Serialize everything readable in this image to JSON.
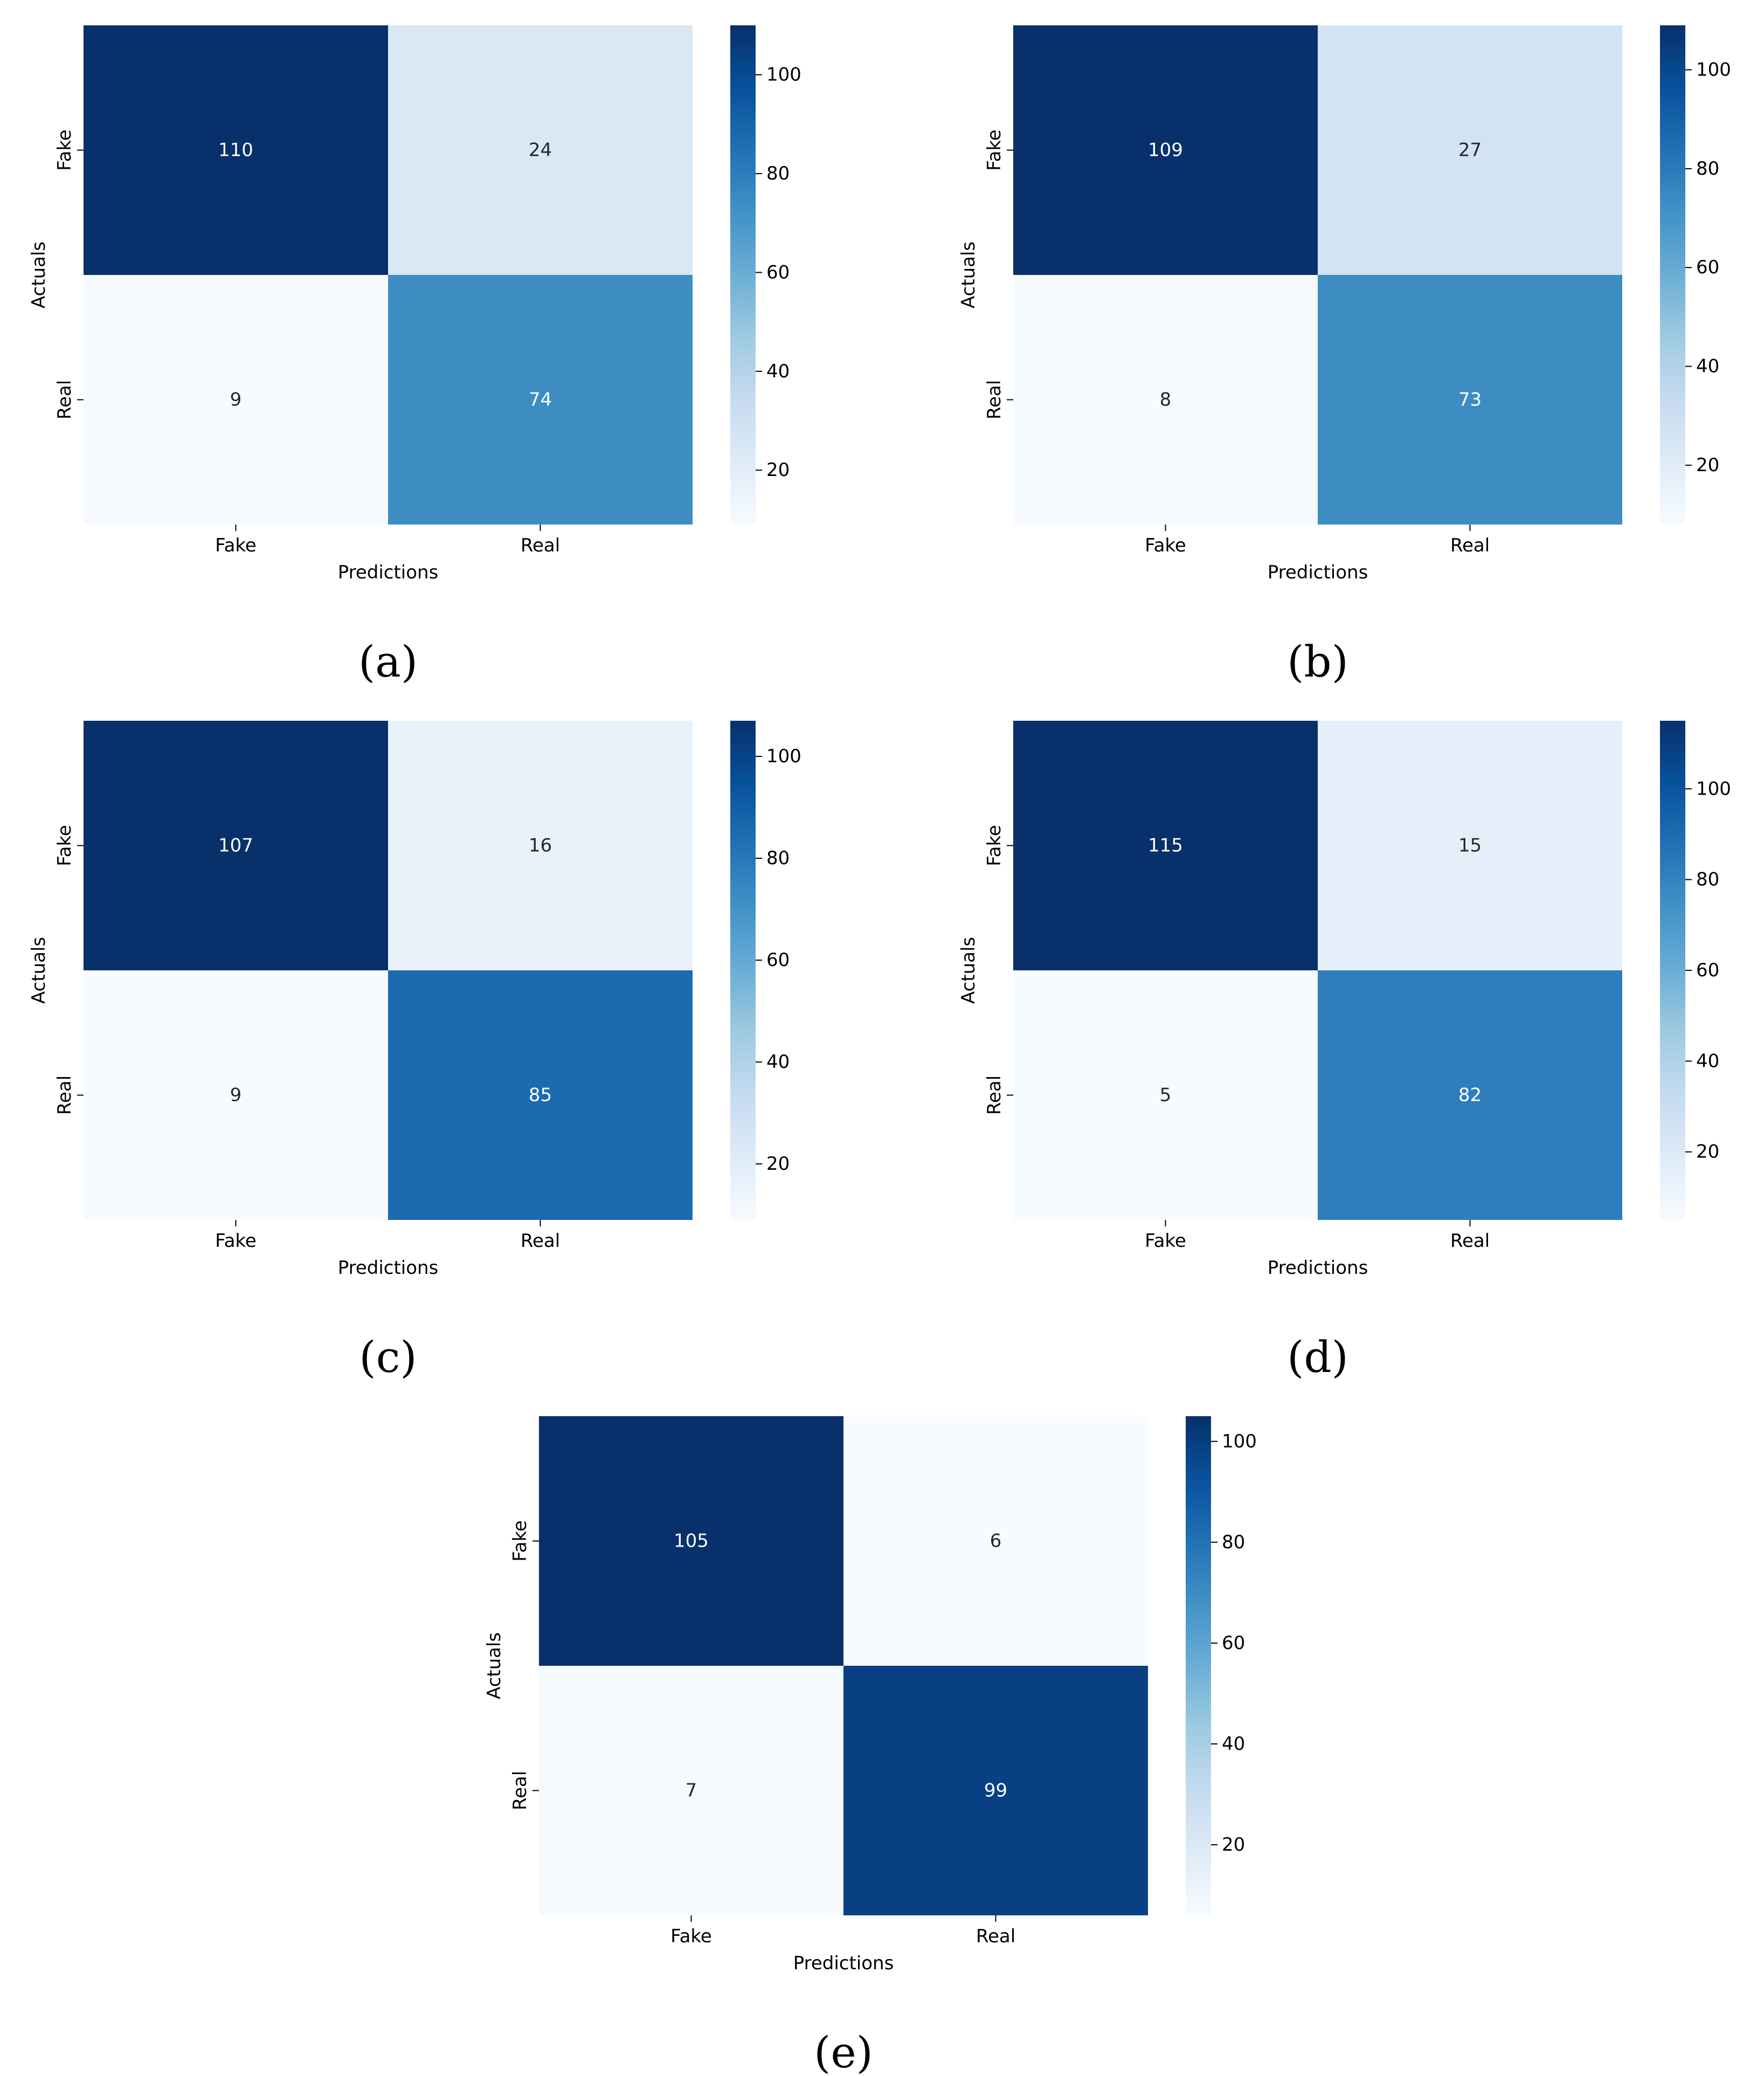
{
  "figure": {
    "colormap": "Blues",
    "colormap_stops": [
      "#f7fbff",
      "#deebf7",
      "#c6dbef",
      "#9ecae1",
      "#6baed6",
      "#4292c6",
      "#2171b5",
      "#08519c",
      "#08306b"
    ]
  },
  "chart_data": [
    {
      "type": "heatmap",
      "caption": "(a)",
      "xlabel": "Predictions",
      "ylabel": "Actuals",
      "x_categories": [
        "Fake",
        "Real"
      ],
      "y_categories": [
        "Fake",
        "Real"
      ],
      "values": [
        [
          110,
          24
        ],
        [
          9,
          74
        ]
      ],
      "colorbar": {
        "ticks": [
          20,
          40,
          60,
          80,
          100
        ]
      }
    },
    {
      "type": "heatmap",
      "caption": "(b)",
      "xlabel": "Predictions",
      "ylabel": "Actuals",
      "x_categories": [
        "Fake",
        "Real"
      ],
      "y_categories": [
        "Fake",
        "Real"
      ],
      "values": [
        [
          109,
          27
        ],
        [
          8,
          73
        ]
      ],
      "colorbar": {
        "ticks": [
          20,
          40,
          60,
          80,
          100
        ]
      }
    },
    {
      "type": "heatmap",
      "caption": "(c)",
      "xlabel": "Predictions",
      "ylabel": "Actuals",
      "x_categories": [
        "Fake",
        "Real"
      ],
      "y_categories": [
        "Fake",
        "Real"
      ],
      "values": [
        [
          107,
          16
        ],
        [
          9,
          85
        ]
      ],
      "colorbar": {
        "ticks": [
          20,
          40,
          60,
          80,
          100
        ]
      }
    },
    {
      "type": "heatmap",
      "caption": "(d)",
      "xlabel": "Predictions",
      "ylabel": "Actuals",
      "x_categories": [
        "Fake",
        "Real"
      ],
      "y_categories": [
        "Fake",
        "Real"
      ],
      "values": [
        [
          115,
          15
        ],
        [
          5,
          82
        ]
      ],
      "colorbar": {
        "ticks": [
          20,
          40,
          60,
          80,
          100
        ]
      }
    },
    {
      "type": "heatmap",
      "caption": "(e)",
      "xlabel": "Predictions",
      "ylabel": "Actuals",
      "x_categories": [
        "Fake",
        "Real"
      ],
      "y_categories": [
        "Fake",
        "Real"
      ],
      "values": [
        [
          105,
          6
        ],
        [
          7,
          99
        ]
      ],
      "colorbar": {
        "ticks": [
          20,
          40,
          60,
          80,
          100
        ]
      }
    }
  ]
}
